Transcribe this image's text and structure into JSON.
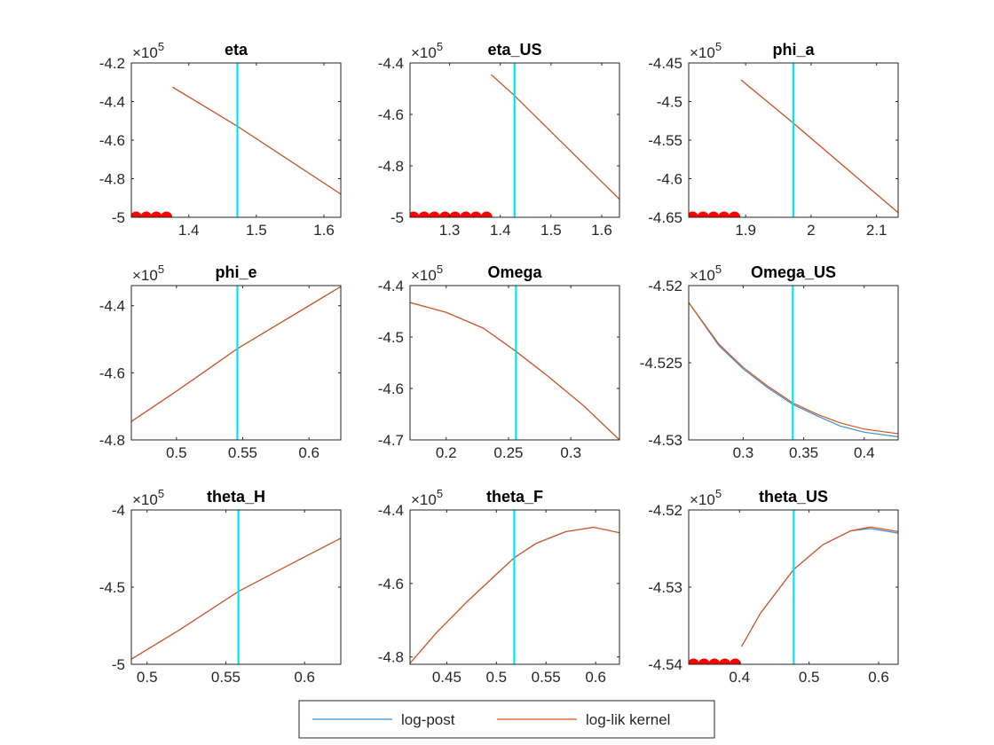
{
  "legend": {
    "entries": [
      {
        "label": "log-post",
        "color": "#3B8FD2"
      },
      {
        "label": "log-lik kernel",
        "color": "#D95319"
      }
    ]
  },
  "colors": {
    "mode_line": "#00E5F0",
    "marker": "#FF0000",
    "axis": "#262626"
  },
  "chart_data": [
    {
      "type": "line",
      "title": "eta",
      "exponent_label": "×10",
      "exponent_power": "5",
      "xlim": [
        1.315,
        1.625
      ],
      "ylim": [
        -5.0,
        -4.2
      ],
      "xticks": [
        1.4,
        1.5,
        1.6
      ],
      "xtick_labels": [
        "1.4",
        "1.5",
        "1.6"
      ],
      "yticks": [
        -5.0,
        -4.8,
        -4.6,
        -4.4,
        -4.2
      ],
      "ytick_labels": [
        "-5",
        "-4.8",
        "-4.6",
        "-4.4",
        "-4.2"
      ],
      "mode_x": 1.472,
      "markers_x": [
        1.322,
        1.337,
        1.352,
        1.367
      ],
      "markers_y": -5.0,
      "series": [
        {
          "name": "log-post",
          "x": [
            1.376,
            1.472,
            1.625
          ],
          "y": [
            -4.325,
            -4.528,
            -4.88
          ]
        },
        {
          "name": "log-lik kernel",
          "x": [
            1.376,
            1.472,
            1.625
          ],
          "y": [
            -4.325,
            -4.528,
            -4.88
          ]
        }
      ]
    },
    {
      "type": "line",
      "title": "eta_US",
      "exponent_label": "×10",
      "exponent_power": "5",
      "xlim": [
        1.222,
        1.635
      ],
      "ylim": [
        -5.0,
        -4.4
      ],
      "xticks": [
        1.3,
        1.4,
        1.5,
        1.6
      ],
      "xtick_labels": [
        "1.3",
        "1.4",
        "1.5",
        "1.6"
      ],
      "yticks": [
        -5.0,
        -4.8,
        -4.6,
        -4.4
      ],
      "ytick_labels": [
        "-5",
        "-4.8",
        "-4.6",
        "-4.4"
      ],
      "mode_x": 1.428,
      "markers_x": [
        1.229,
        1.25,
        1.27,
        1.291,
        1.311,
        1.332,
        1.352,
        1.373
      ],
      "markers_y": -5.0,
      "series": [
        {
          "name": "log-post",
          "x": [
            1.382,
            1.428,
            1.635
          ],
          "y": [
            -4.445,
            -4.527,
            -4.93
          ]
        },
        {
          "name": "log-lik kernel",
          "x": [
            1.382,
            1.428,
            1.635
          ],
          "y": [
            -4.445,
            -4.527,
            -4.93
          ]
        }
      ]
    },
    {
      "type": "line",
      "title": "phi_a",
      "exponent_label": "×10",
      "exponent_power": "5",
      "xlim": [
        1.813,
        2.133
      ],
      "ylim": [
        -4.65,
        -4.45
      ],
      "xticks": [
        1.9,
        2.0,
        2.1
      ],
      "xtick_labels": [
        "1.9",
        "2",
        "2.1"
      ],
      "yticks": [
        -4.65,
        -4.6,
        -4.55,
        -4.5,
        -4.45
      ],
      "ytick_labels": [
        "-4.65",
        "-4.6",
        "-4.55",
        "-4.5",
        "-4.45"
      ],
      "mode_x": 1.973,
      "markers_x": [
        1.819,
        1.835,
        1.851,
        1.867,
        1.883
      ],
      "markers_y": -4.65,
      "series": [
        {
          "name": "log-post",
          "x": [
            1.893,
            1.973,
            2.133
          ],
          "y": [
            -4.472,
            -4.528,
            -4.644
          ]
        },
        {
          "name": "log-lik kernel",
          "x": [
            1.893,
            1.973,
            2.133
          ],
          "y": [
            -4.472,
            -4.528,
            -4.644
          ]
        }
      ]
    },
    {
      "type": "line",
      "title": "phi_e",
      "exponent_label": "×10",
      "exponent_power": "5",
      "xlim": [
        0.466,
        0.624
      ],
      "ylim": [
        -4.8,
        -4.34
      ],
      "xticks": [
        0.5,
        0.55,
        0.6
      ],
      "xtick_labels": [
        "0.5",
        "0.55",
        "0.6"
      ],
      "yticks": [
        -4.8,
        -4.6,
        -4.4
      ],
      "ytick_labels": [
        "-4.8",
        "-4.6",
        "-4.4"
      ],
      "mode_x": 0.546,
      "markers_x": [],
      "markers_y": -4.8,
      "series": [
        {
          "name": "log-post",
          "x": [
            0.466,
            0.5,
            0.546,
            0.6,
            0.624
          ],
          "y": [
            -4.745,
            -4.655,
            -4.528,
            -4.4,
            -4.343
          ]
        },
        {
          "name": "log-lik kernel",
          "x": [
            0.466,
            0.5,
            0.546,
            0.6,
            0.624
          ],
          "y": [
            -4.745,
            -4.655,
            -4.528,
            -4.4,
            -4.343
          ]
        }
      ]
    },
    {
      "type": "line",
      "title": "Omega",
      "exponent_label": "×10",
      "exponent_power": "5",
      "xlim": [
        0.171,
        0.339
      ],
      "ylim": [
        -4.7,
        -4.4
      ],
      "xticks": [
        0.2,
        0.25,
        0.3
      ],
      "xtick_labels": [
        "0.2",
        "0.25",
        "0.3"
      ],
      "yticks": [
        -4.7,
        -4.6,
        -4.5,
        -4.4
      ],
      "ytick_labels": [
        "-4.7",
        "-4.6",
        "-4.5",
        "-4.4"
      ],
      "mode_x": 0.256,
      "markers_x": [],
      "markers_y": -4.7,
      "series": [
        {
          "name": "log-post",
          "x": [
            0.171,
            0.2,
            0.23,
            0.256,
            0.28,
            0.31,
            0.339
          ],
          "y": [
            -4.433,
            -4.452,
            -4.483,
            -4.528,
            -4.573,
            -4.633,
            -4.7
          ]
        },
        {
          "name": "log-lik kernel",
          "x": [
            0.171,
            0.2,
            0.23,
            0.256,
            0.28,
            0.31,
            0.339
          ],
          "y": [
            -4.433,
            -4.452,
            -4.483,
            -4.528,
            -4.573,
            -4.633,
            -4.7
          ]
        }
      ]
    },
    {
      "type": "line",
      "title": "Omega_US",
      "exponent_label": "×10",
      "exponent_power": "5",
      "xlim": [
        0.255,
        0.428
      ],
      "ylim": [
        -4.53,
        -4.52
      ],
      "xticks": [
        0.3,
        0.35,
        0.4
      ],
      "xtick_labels": [
        "0.3",
        "0.35",
        "0.4"
      ],
      "yticks": [
        -4.53,
        -4.525,
        -4.52
      ],
      "ytick_labels": [
        "-4.53",
        "-4.525",
        "-4.52"
      ],
      "mode_x": 0.341,
      "markers_x": [],
      "markers_y": -4.53,
      "series": [
        {
          "name": "log-post",
          "x": [
            0.255,
            0.28,
            0.3,
            0.32,
            0.341,
            0.36,
            0.38,
            0.4,
            0.428
          ],
          "y": [
            -4.5211,
            -4.5239,
            -4.5254,
            -4.5266,
            -4.5277,
            -4.5284,
            -4.5291,
            -4.5295,
            -4.5298
          ]
        },
        {
          "name": "log-lik kernel",
          "x": [
            0.255,
            0.28,
            0.3,
            0.32,
            0.341,
            0.36,
            0.38,
            0.4,
            0.428
          ],
          "y": [
            -4.5211,
            -4.5238,
            -4.5253,
            -4.5265,
            -4.5276,
            -4.5283,
            -4.5289,
            -4.5293,
            -4.5296
          ]
        }
      ]
    },
    {
      "type": "line",
      "title": "theta_H",
      "exponent_label": "×10",
      "exponent_power": "5",
      "xlim": [
        0.49,
        0.623
      ],
      "ylim": [
        -5.0,
        -4.0
      ],
      "xticks": [
        0.5,
        0.55,
        0.6
      ],
      "xtick_labels": [
        "0.5",
        "0.55",
        "0.6"
      ],
      "yticks": [
        -5.0,
        -4.5,
        -4.0
      ],
      "ytick_labels": [
        "-5",
        "-4.5",
        "-4"
      ],
      "mode_x": 0.558,
      "markers_x": [],
      "markers_y": -5.0,
      "series": [
        {
          "name": "log-post",
          "x": [
            0.49,
            0.52,
            0.558,
            0.59,
            0.623
          ],
          "y": [
            -4.967,
            -4.781,
            -4.528,
            -4.357,
            -4.183
          ]
        },
        {
          "name": "log-lik kernel",
          "x": [
            0.49,
            0.52,
            0.558,
            0.59,
            0.623
          ],
          "y": [
            -4.967,
            -4.781,
            -4.528,
            -4.357,
            -4.183
          ]
        }
      ]
    },
    {
      "type": "line",
      "title": "theta_F",
      "exponent_label": "×10",
      "exponent_power": "5",
      "xlim": [
        0.413,
        0.624
      ],
      "ylim": [
        -4.82,
        -4.4
      ],
      "xticks": [
        0.45,
        0.5,
        0.55,
        0.6
      ],
      "xtick_labels": [
        "0.45",
        "0.5",
        "0.55",
        "0.6"
      ],
      "yticks": [
        -4.8,
        -4.6,
        -4.4
      ],
      "ytick_labels": [
        "-4.8",
        "-4.6",
        "-4.4"
      ],
      "mode_x": 0.518,
      "markers_x": [],
      "markers_y": -4.82,
      "series": [
        {
          "name": "log-post",
          "x": [
            0.413,
            0.44,
            0.47,
            0.5,
            0.518,
            0.54,
            0.57,
            0.598,
            0.624
          ],
          "y": [
            -4.817,
            -4.733,
            -4.651,
            -4.575,
            -4.53,
            -4.491,
            -4.459,
            -4.447,
            -4.462
          ]
        },
        {
          "name": "log-lik kernel",
          "x": [
            0.413,
            0.44,
            0.47,
            0.5,
            0.518,
            0.54,
            0.57,
            0.598,
            0.624
          ],
          "y": [
            -4.817,
            -4.733,
            -4.651,
            -4.575,
            -4.53,
            -4.491,
            -4.459,
            -4.447,
            -4.462
          ]
        }
      ]
    },
    {
      "type": "line",
      "title": "theta_US",
      "exponent_label": "×10",
      "exponent_power": "5",
      "xlim": [
        0.327,
        0.628
      ],
      "ylim": [
        -4.54,
        -4.52
      ],
      "xticks": [
        0.4,
        0.5,
        0.6
      ],
      "xtick_labels": [
        "0.4",
        "0.5",
        "0.6"
      ],
      "yticks": [
        -4.54,
        -4.53,
        -4.52
      ],
      "ytick_labels": [
        "-4.54",
        "-4.53",
        "-4.52"
      ],
      "mode_x": 0.478,
      "markers_x": [
        0.334,
        0.349,
        0.364,
        0.379,
        0.394
      ],
      "markers_y": -4.54,
      "series": [
        {
          "name": "log-post",
          "x": [
            0.403,
            0.43,
            0.478,
            0.52,
            0.56,
            0.588,
            0.628
          ],
          "y": [
            -4.5377,
            -4.5334,
            -4.5277,
            -4.5245,
            -4.5227,
            -4.5224,
            -4.523
          ]
        },
        {
          "name": "log-lik kernel",
          "x": [
            0.403,
            0.43,
            0.478,
            0.52,
            0.56,
            0.588,
            0.628
          ],
          "y": [
            -4.5377,
            -4.5334,
            -4.5277,
            -4.5245,
            -4.5227,
            -4.5222,
            -4.5228
          ]
        }
      ]
    }
  ]
}
